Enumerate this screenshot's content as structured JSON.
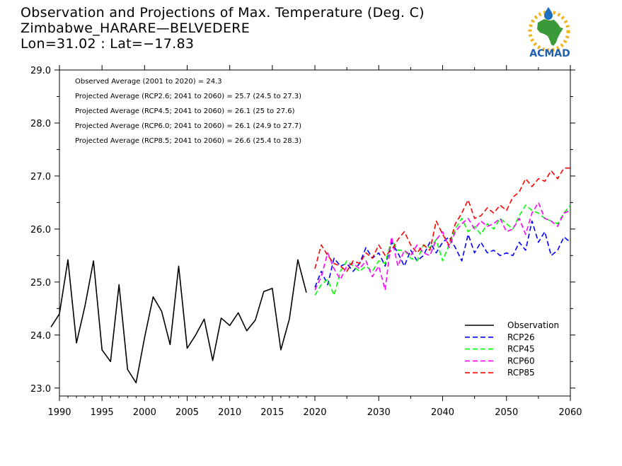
{
  "header": {
    "title": "Observation and Projections of Max. Temperature (Deg. C)",
    "station": "Zimbabwe_HARARE—BELVEDERE",
    "coords": "Lon=31.02 : Lat=−17.83"
  },
  "logo": {
    "text": "ACMAD"
  },
  "annotations": [
    "Observed Average (2001 to 2020) = 24.3",
    "Projected Average (RCP2.6; 2041 to 2060) = 25.7 (24.5 to 27.3)",
    "Projected Average (RCP4.5; 2041 to 2060) = 26.1 (25 to 27.6)",
    "Projected Average (RCP6.0; 2041 to 2060) = 26.1 (24.9 to 27.7)",
    "Projected Average (RCP8.5; 2041 to 2060) = 26.6 (25.4 to 28.3)"
  ],
  "chart_data": {
    "type": "line",
    "title": "Observation and Projections of Max. Temperature (Deg. C)",
    "xlabel": "",
    "ylabel": "",
    "xlim": [
      1990,
      2060
    ],
    "ylim": [
      22.85,
      29.0
    ],
    "y_ticks": [
      23.0,
      24.0,
      25.0,
      26.0,
      27.0,
      28.0,
      29.0
    ],
    "y_tick_labels": [
      "23.0",
      "24.0",
      "25.0",
      "26.0",
      "27.0",
      "28.0",
      "29.0"
    ],
    "x_ticks_left": [
      1990,
      1995,
      2000,
      2005,
      2010,
      2015,
      2020
    ],
    "x_ticks_right": [
      2020,
      2030,
      2040,
      2050,
      2060
    ],
    "x_break": 2020,
    "legend_position": "bottom-right",
    "grid": false,
    "series": [
      {
        "name": "Observation",
        "color": "#000000",
        "dash": "solid",
        "x": [
          1989,
          1990,
          1991,
          1992,
          1993,
          1994,
          1995,
          1996,
          1997,
          1998,
          1999,
          2000,
          2001,
          2002,
          2003,
          2004,
          2005,
          2006,
          2007,
          2008,
          2009,
          2010,
          2011,
          2012,
          2013,
          2014,
          2015,
          2016,
          2017,
          2018,
          2019
        ],
        "y": [
          24.15,
          24.4,
          25.42,
          23.85,
          24.55,
          25.4,
          23.72,
          23.5,
          24.95,
          23.35,
          23.1,
          23.95,
          24.72,
          24.45,
          23.82,
          25.3,
          23.75,
          24.0,
          24.3,
          23.52,
          24.32,
          24.18,
          24.42,
          24.08,
          24.28,
          24.82,
          24.88,
          23.72,
          24.3,
          25.42,
          24.8
        ]
      },
      {
        "name": "RCP26",
        "color": "#0000ff",
        "dash": "dashed",
        "x": [
          2020,
          2021,
          2022,
          2023,
          2024,
          2025,
          2026,
          2027,
          2028,
          2029,
          2030,
          2031,
          2032,
          2033,
          2034,
          2035,
          2036,
          2037,
          2038,
          2039,
          2040,
          2041,
          2042,
          2043,
          2044,
          2045,
          2046,
          2047,
          2048,
          2049,
          2050,
          2051,
          2052,
          2053,
          2054,
          2055,
          2056,
          2057,
          2058,
          2059,
          2060
        ],
        "y": [
          24.9,
          25.2,
          24.95,
          25.45,
          25.3,
          25.35,
          25.2,
          25.35,
          25.65,
          25.45,
          25.55,
          25.3,
          25.75,
          25.55,
          25.3,
          25.6,
          25.4,
          25.5,
          25.75,
          25.55,
          25.75,
          25.85,
          25.65,
          25.4,
          25.9,
          25.55,
          25.75,
          25.55,
          25.6,
          25.5,
          25.55,
          25.5,
          25.75,
          25.6,
          26.15,
          25.75,
          25.95,
          25.5,
          25.6,
          25.85,
          25.75
        ]
      },
      {
        "name": "RCP45",
        "color": "#00ff00",
        "dash": "dashed",
        "x": [
          2020,
          2021,
          2022,
          2023,
          2024,
          2025,
          2026,
          2027,
          2028,
          2029,
          2030,
          2031,
          2032,
          2033,
          2034,
          2035,
          2036,
          2037,
          2038,
          2039,
          2040,
          2041,
          2042,
          2043,
          2044,
          2045,
          2046,
          2047,
          2048,
          2049,
          2050,
          2051,
          2052,
          2053,
          2054,
          2055,
          2056,
          2057,
          2058,
          2059,
          2060
        ],
        "y": [
          24.75,
          24.95,
          25.05,
          24.75,
          25.2,
          25.4,
          25.3,
          25.2,
          25.3,
          25.2,
          25.4,
          25.35,
          25.8,
          25.6,
          25.6,
          25.45,
          25.4,
          25.7,
          25.65,
          25.8,
          25.4,
          25.7,
          26.0,
          26.2,
          25.95,
          26.05,
          25.9,
          26.1,
          26.0,
          26.2,
          26.1,
          26.0,
          26.25,
          26.45,
          26.35,
          26.3,
          26.2,
          26.15,
          26.1,
          26.3,
          26.45
        ]
      },
      {
        "name": "RCP60",
        "color": "#ff00ff",
        "dash": "dashed",
        "x": [
          2020,
          2021,
          2022,
          2023,
          2024,
          2025,
          2026,
          2027,
          2028,
          2029,
          2030,
          2031,
          2032,
          2033,
          2034,
          2035,
          2036,
          2037,
          2038,
          2039,
          2040,
          2041,
          2042,
          2043,
          2044,
          2045,
          2046,
          2047,
          2048,
          2049,
          2050,
          2051,
          2052,
          2053,
          2054,
          2055,
          2056,
          2057,
          2058,
          2059,
          2060
        ],
        "y": [
          24.85,
          25.1,
          25.55,
          25.25,
          25.05,
          25.3,
          25.35,
          25.25,
          25.4,
          25.1,
          25.3,
          24.85,
          25.85,
          25.3,
          25.6,
          25.5,
          25.7,
          25.55,
          25.5,
          25.8,
          25.95,
          25.65,
          25.95,
          26.1,
          26.2,
          26.0,
          26.15,
          26.05,
          26.1,
          26.2,
          25.95,
          26.0,
          26.2,
          25.9,
          26.3,
          26.5,
          26.2,
          26.15,
          26.05,
          26.3,
          26.35
        ]
      },
      {
        "name": "RCP85",
        "color": "#ff0000",
        "dash": "dashed",
        "x": [
          2020,
          2021,
          2022,
          2023,
          2024,
          2025,
          2026,
          2027,
          2028,
          2029,
          2030,
          2031,
          2032,
          2033,
          2034,
          2035,
          2036,
          2037,
          2038,
          2039,
          2040,
          2041,
          2042,
          2043,
          2044,
          2045,
          2046,
          2047,
          2048,
          2049,
          2050,
          2051,
          2052,
          2053,
          2054,
          2055,
          2056,
          2057,
          2058,
          2059,
          2060
        ],
        "y": [
          25.25,
          25.7,
          25.5,
          25.35,
          25.3,
          25.2,
          25.4,
          25.35,
          25.55,
          25.45,
          25.7,
          25.5,
          25.6,
          25.8,
          25.95,
          25.7,
          25.55,
          25.7,
          25.6,
          26.15,
          25.9,
          25.7,
          26.1,
          26.3,
          26.55,
          26.2,
          26.25,
          26.4,
          26.3,
          26.45,
          26.35,
          26.6,
          26.7,
          26.95,
          26.8,
          26.95,
          26.9,
          27.1,
          26.95,
          27.15,
          27.15
        ]
      }
    ]
  }
}
